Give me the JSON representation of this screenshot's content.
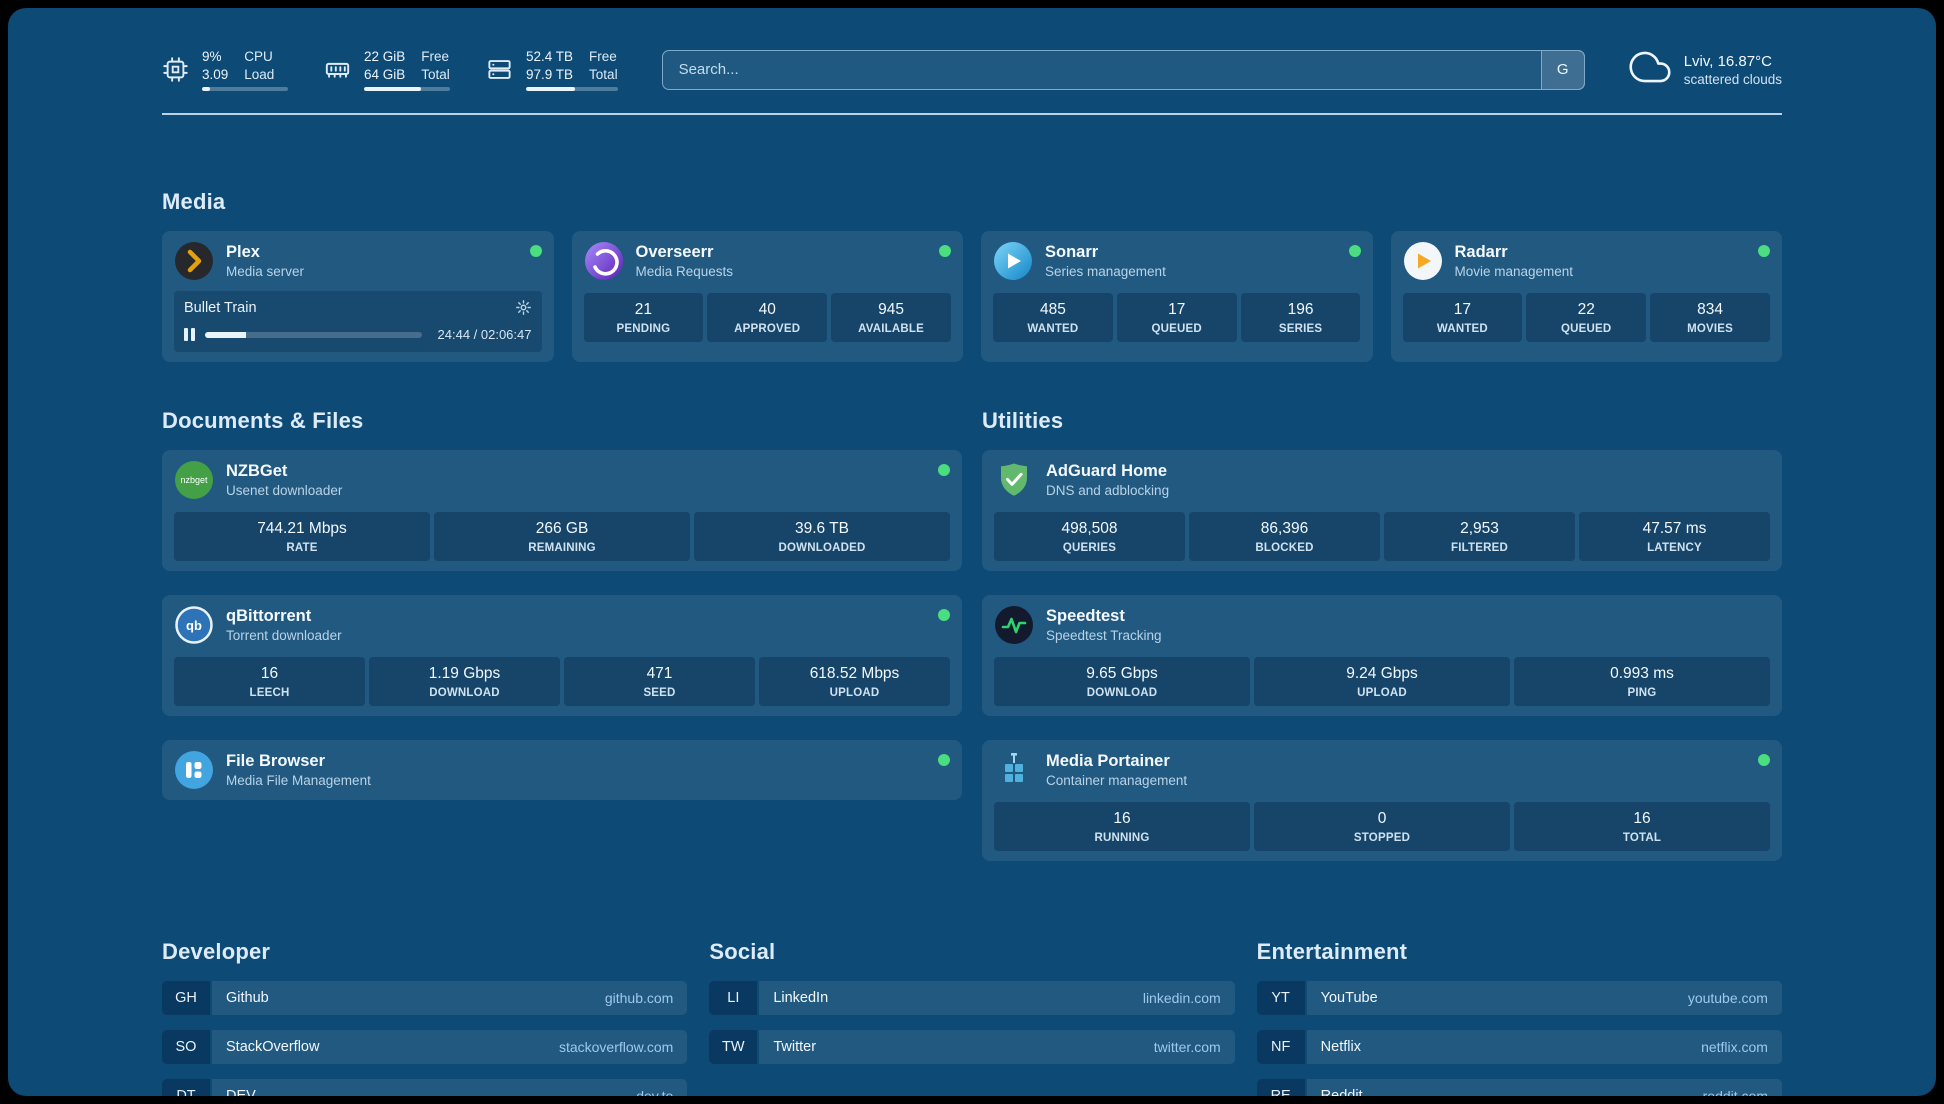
{
  "header": {
    "resources": [
      {
        "icon": "cpu-icon",
        "top_value": "9%",
        "bottom_value": "3.09",
        "top_label": "CPU",
        "bottom_label": "Load",
        "progress_pct": 9
      },
      {
        "icon": "memory-icon",
        "top_value": "22 GiB",
        "bottom_value": "64 GiB",
        "top_label": "Free",
        "bottom_label": "Total",
        "progress_pct": 66
      },
      {
        "icon": "disk-icon",
        "top_value": "52.4 TB",
        "bottom_value": "97.9 TB",
        "top_label": "Free",
        "bottom_label": "Total",
        "progress_pct": 54
      }
    ],
    "search": {
      "placeholder": "Search...",
      "provider_label": "G"
    },
    "weather": {
      "location": "Lviv, 16.87°C",
      "condition": "scattered clouds"
    }
  },
  "sections": {
    "media": {
      "title": "Media",
      "cards": [
        {
          "name": "Plex",
          "subtitle": "Media server",
          "status": "online",
          "now_playing": {
            "title": "Bullet Train",
            "time": "24:44 / 02:06:47",
            "progress_pct": 19
          }
        },
        {
          "name": "Overseerr",
          "subtitle": "Media Requests",
          "status": "online",
          "stats": [
            {
              "value": "21",
              "label": "PENDING"
            },
            {
              "value": "40",
              "label": "APPROVED"
            },
            {
              "value": "945",
              "label": "AVAILABLE"
            }
          ]
        },
        {
          "name": "Sonarr",
          "subtitle": "Series management",
          "status": "online",
          "stats": [
            {
              "value": "485",
              "label": "WANTED"
            },
            {
              "value": "17",
              "label": "QUEUED"
            },
            {
              "value": "196",
              "label": "SERIES"
            }
          ]
        },
        {
          "name": "Radarr",
          "subtitle": "Movie management",
          "status": "online",
          "stats": [
            {
              "value": "17",
              "label": "WANTED"
            },
            {
              "value": "22",
              "label": "QUEUED"
            },
            {
              "value": "834",
              "label": "MOVIES"
            }
          ]
        }
      ]
    },
    "documents": {
      "title": "Documents & Files",
      "cards": [
        {
          "name": "NZBGet",
          "subtitle": "Usenet downloader",
          "status": "online",
          "stats": [
            {
              "value": "744.21 Mbps",
              "label": "RATE"
            },
            {
              "value": "266 GB",
              "label": "REMAINING"
            },
            {
              "value": "39.6 TB",
              "label": "DOWNLOADED"
            }
          ]
        },
        {
          "name": "qBittorrent",
          "subtitle": "Torrent downloader",
          "status": "online",
          "stats": [
            {
              "value": "16",
              "label": "LEECH"
            },
            {
              "value": "1.19 Gbps",
              "label": "DOWNLOAD"
            },
            {
              "value": "471",
              "label": "SEED"
            },
            {
              "value": "618.52 Mbps",
              "label": "UPLOAD"
            }
          ]
        },
        {
          "name": "File Browser",
          "subtitle": "Media File Management",
          "status": "online",
          "stats": []
        }
      ]
    },
    "utilities": {
      "title": "Utilities",
      "cards": [
        {
          "name": "AdGuard Home",
          "subtitle": "DNS and adblocking",
          "stats": [
            {
              "value": "498,508",
              "label": "QUERIES"
            },
            {
              "value": "86,396",
              "label": "BLOCKED"
            },
            {
              "value": "2,953",
              "label": "FILTERED"
            },
            {
              "value": "47.57 ms",
              "label": "LATENCY"
            }
          ]
        },
        {
          "name": "Speedtest",
          "subtitle": "Speedtest Tracking",
          "stats": [
            {
              "value": "9.65 Gbps",
              "label": "DOWNLOAD"
            },
            {
              "value": "9.24 Gbps",
              "label": "UPLOAD"
            },
            {
              "value": "0.993 ms",
              "label": "PING"
            }
          ]
        },
        {
          "name": "Media Portainer",
          "subtitle": "Container management",
          "status": "online",
          "stats": [
            {
              "value": "16",
              "label": "RUNNING"
            },
            {
              "value": "0",
              "label": "STOPPED"
            },
            {
              "value": "16",
              "label": "TOTAL"
            }
          ]
        }
      ]
    }
  },
  "bookmarks": [
    {
      "title": "Developer",
      "items": [
        {
          "abbr": "GH",
          "name": "Github",
          "domain": "github.com"
        },
        {
          "abbr": "SO",
          "name": "StackOverflow",
          "domain": "stackoverflow.com"
        },
        {
          "abbr": "DT",
          "name": "DEV",
          "domain": "dev.to"
        }
      ]
    },
    {
      "title": "Social",
      "items": [
        {
          "abbr": "LI",
          "name": "LinkedIn",
          "domain": "linkedin.com"
        },
        {
          "abbr": "TW",
          "name": "Twitter",
          "domain": "twitter.com"
        }
      ]
    },
    {
      "title": "Entertainment",
      "items": [
        {
          "abbr": "YT",
          "name": "YouTube",
          "domain": "youtube.com"
        },
        {
          "abbr": "NF",
          "name": "Netflix",
          "domain": "netflix.com"
        },
        {
          "abbr": "RE",
          "name": "Reddit",
          "domain": "reddit.com"
        }
      ]
    }
  ],
  "colors": {
    "background": "#0d4a76",
    "status_online": "#4ade80",
    "domain_text": "#9fc9ea"
  }
}
